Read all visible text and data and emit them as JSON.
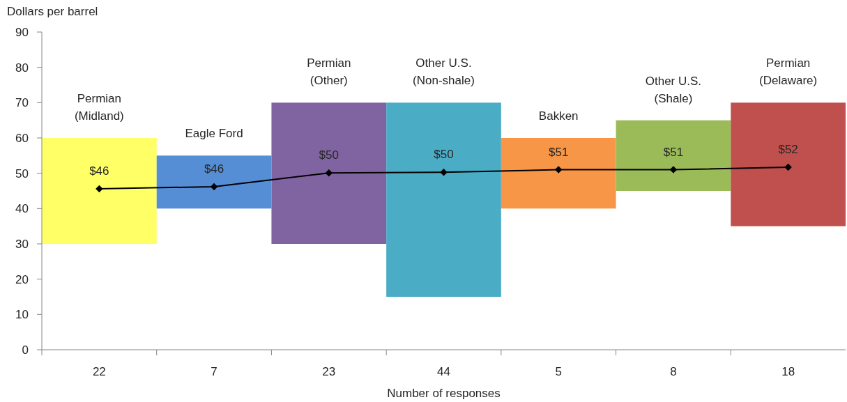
{
  "chart_data": {
    "type": "bar",
    "ylabel": "Dollars per barrel",
    "xlabel": "Number of responses",
    "categories": [
      "22",
      "7",
      "23",
      "44",
      "5",
      "8",
      "18"
    ],
    "series": [
      {
        "values": [
          30,
          15,
          40,
          55,
          20,
          20,
          35
        ],
        "base": [
          30,
          40,
          30,
          15,
          40,
          45,
          35
        ],
        "colors": [
          "#ffff66",
          "#558ed5",
          "#8064a2",
          "#4bacc6",
          "#f79646",
          "#9bbb59",
          "#c0504d"
        ]
      },
      {
        "type": "line",
        "color": "#000000",
        "values": [
          45.6,
          46.2,
          50.1,
          50.3,
          51,
          51,
          51.7
        ],
        "value_labels": [
          "$46",
          "$46",
          "$50",
          "$50",
          "$51",
          "$51",
          "$52"
        ],
        "marker": "diamond",
        "line_style": "solid"
      }
    ],
    "ylim": [
      0,
      90
    ],
    "yticks": [
      0,
      10,
      20,
      30,
      40,
      50,
      60,
      70,
      80,
      90
    ],
    "annotations": [
      {
        "text": "Permian\n(Midland)",
        "x": "22",
        "y": 60
      },
      {
        "text": "Eagle Ford",
        "x": "7",
        "y": 55
      },
      {
        "text": "Permian\n(Other)",
        "x": "23",
        "y": 70
      },
      {
        "text": "Other U.S.\n(Non-shale)",
        "x": "44",
        "y": 70
      },
      {
        "text": "Bakken",
        "x": "5",
        "y": 60
      },
      {
        "text": "Other U.S.\n(Shale)",
        "x": "8",
        "y": 65
      },
      {
        "text": "Permian\n(Delaware)",
        "x": "18",
        "y": 70
      }
    ]
  }
}
